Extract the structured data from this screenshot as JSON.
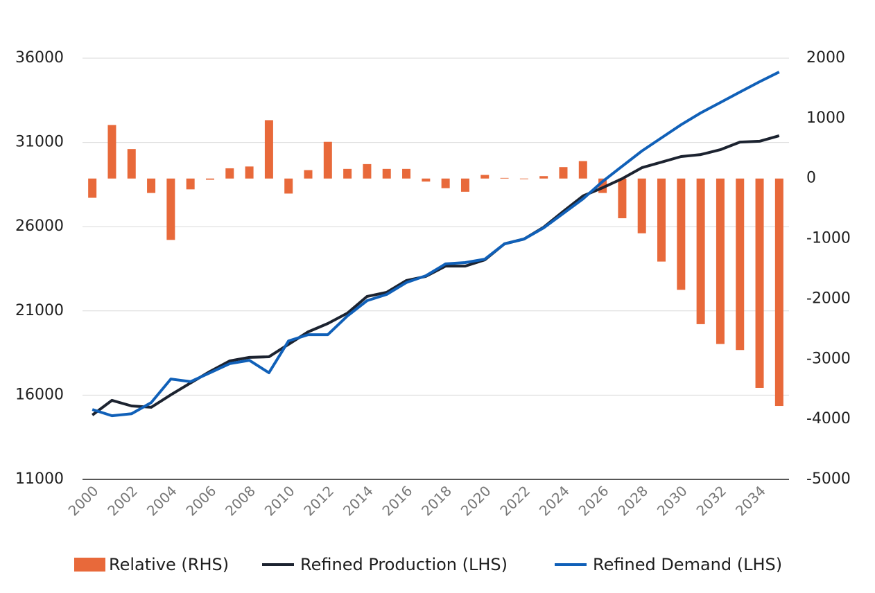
{
  "chart_data": {
    "type": "combo",
    "categories": [
      "2000",
      null,
      "2002",
      null,
      "2004",
      null,
      "2006",
      null,
      "2008",
      null,
      "2010",
      null,
      "2012",
      null,
      "2014",
      null,
      "2016",
      null,
      "2018",
      null,
      "2020",
      null,
      "2022",
      null,
      "2024",
      null,
      "2026",
      null,
      "2028",
      null,
      "2030",
      null,
      "2032",
      null,
      "2034",
      null
    ],
    "series": [
      {
        "name": "Relative (RHS)",
        "type": "bar",
        "axis": "y2",
        "color": "#e8693a",
        "values": [
          -320,
          890,
          490,
          -240,
          -1020,
          -180,
          -20,
          170,
          200,
          970,
          -250,
          140,
          610,
          160,
          240,
          160,
          160,
          -50,
          -160,
          -220,
          60,
          10,
          -10,
          40,
          190,
          290,
          -240,
          -660,
          -910,
          -1380,
          -1850,
          -2420,
          -2750,
          -2850,
          -3480,
          -3780
        ]
      },
      {
        "name": "Refined Production (LHS)",
        "type": "line",
        "color": "#1c2330",
        "values": [
          14820,
          15690,
          15360,
          15280,
          16020,
          16720,
          17410,
          18030,
          18240,
          18280,
          19020,
          19760,
          20250,
          20870,
          21860,
          22100,
          22800,
          23050,
          23660,
          23660,
          24030,
          24980,
          25270,
          25970,
          26910,
          27820,
          28310,
          28850,
          29500,
          29830,
          30160,
          30280,
          30570,
          31020,
          31070,
          31400
        ]
      },
      {
        "name": "Refined Demand (LHS)",
        "type": "line",
        "color": "#1060b8",
        "values": [
          15150,
          14780,
          14900,
          15560,
          16960,
          16800,
          17330,
          17870,
          18070,
          17330,
          19220,
          19590,
          19590,
          20700,
          21610,
          21980,
          22680,
          23090,
          23790,
          23870,
          24070,
          24980,
          25270,
          25930,
          26790,
          27650,
          28680,
          29590,
          30490,
          31270,
          32050,
          32750,
          33370,
          33990,
          34600,
          35180
        ]
      }
    ],
    "ylim": [
      11000,
      36000
    ],
    "yticks": [
      11000,
      16000,
      21000,
      26000,
      31000,
      36000
    ],
    "y2lim": [
      -5000,
      2000
    ],
    "y2ticks": [
      -5000,
      -4000,
      -3000,
      -2000,
      -1000,
      0,
      1000,
      2000
    ],
    "grid": true
  }
}
